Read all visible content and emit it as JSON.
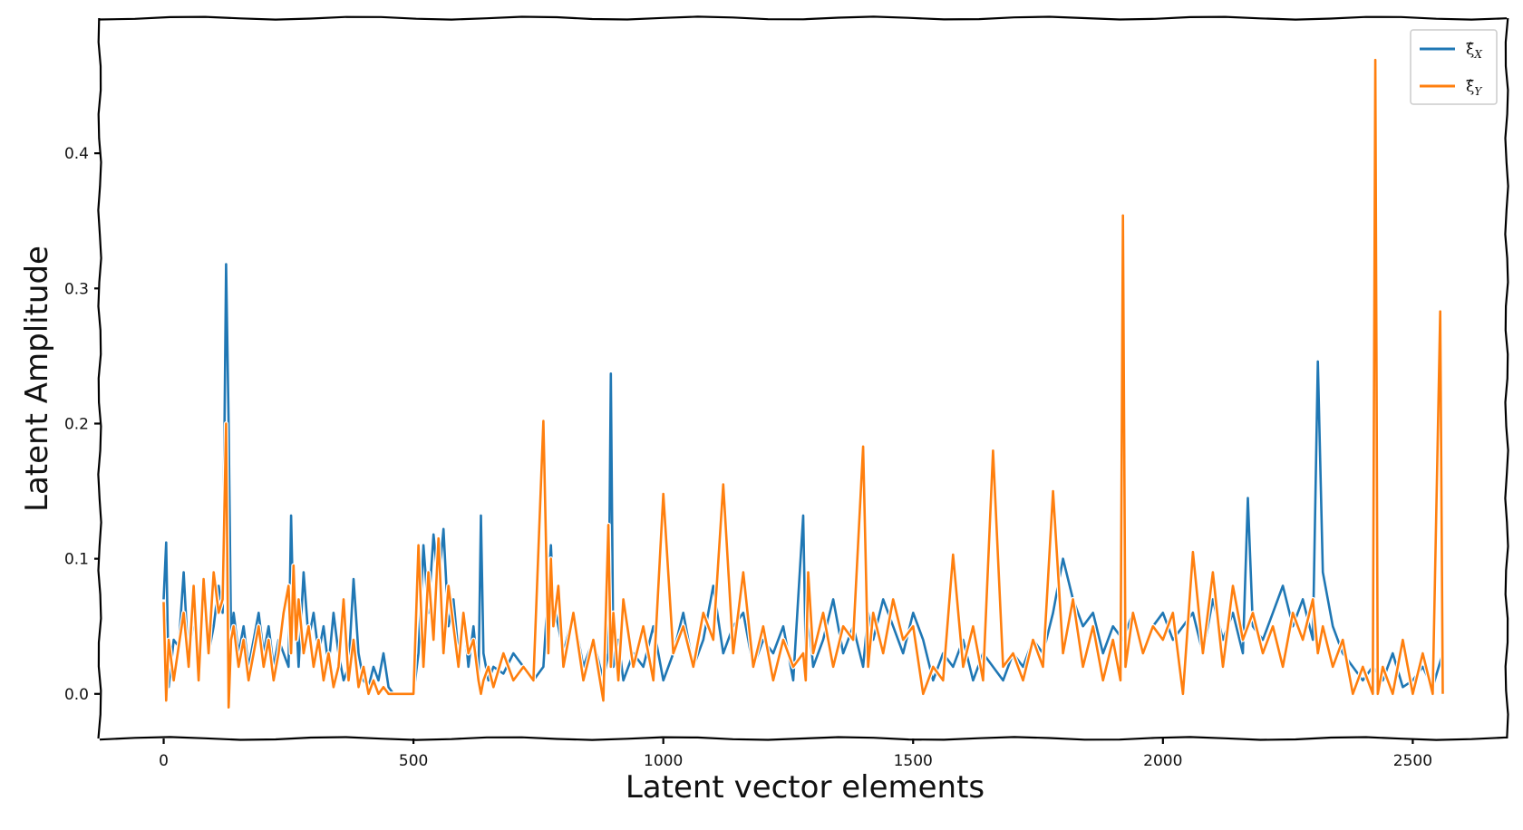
{
  "chart_data": {
    "type": "line",
    "title": "",
    "xlabel": "Latent vector elements",
    "ylabel": "Latent Amplitude",
    "xlim": [
      -128,
      2688
    ],
    "ylim": [
      -0.033,
      0.5
    ],
    "xticks": [
      0,
      500,
      1000,
      1500,
      2000,
      2500
    ],
    "xtick_labels": [
      "0",
      "500",
      "1000",
      "1500",
      "2000",
      "2500"
    ],
    "yticks": [
      0.0,
      0.1,
      0.2,
      0.3,
      0.4
    ],
    "ytick_labels": [
      "0.0",
      "0.1",
      "0.2",
      "0.3",
      "0.4"
    ],
    "grid": false,
    "legend_position": "top-right",
    "style": "xkcd hand-drawn",
    "colors": {
      "series_x": "#1f77b4",
      "series_y": "#ff7f0e"
    },
    "series": [
      {
        "name": "ξ̂X",
        "name_main": "ξ̂",
        "name_sub": "X",
        "color": "#1f77b4",
        "x": [
          0,
          5,
          10,
          20,
          30,
          40,
          50,
          60,
          70,
          80,
          90,
          100,
          110,
          118,
          125,
          130,
          135,
          140,
          150,
          160,
          170,
          180,
          190,
          200,
          210,
          220,
          230,
          240,
          250,
          255,
          260,
          265,
          270,
          280,
          290,
          300,
          310,
          320,
          330,
          340,
          350,
          360,
          370,
          380,
          390,
          400,
          410,
          420,
          430,
          440,
          450,
          460,
          470,
          480,
          490,
          500,
          510,
          520,
          530,
          540,
          550,
          560,
          570,
          580,
          590,
          600,
          610,
          620,
          630,
          635,
          640,
          650,
          660,
          680,
          700,
          720,
          740,
          760,
          770,
          775,
          780,
          790,
          800,
          820,
          840,
          860,
          880,
          890,
          895,
          900,
          910,
          920,
          940,
          960,
          980,
          1000,
          1020,
          1040,
          1060,
          1080,
          1100,
          1120,
          1140,
          1160,
          1180,
          1200,
          1220,
          1240,
          1260,
          1280,
          1285,
          1290,
          1300,
          1320,
          1340,
          1360,
          1380,
          1400,
          1410,
          1420,
          1440,
          1460,
          1480,
          1500,
          1520,
          1540,
          1560,
          1580,
          1600,
          1620,
          1640,
          1660,
          1680,
          1700,
          1720,
          1740,
          1760,
          1780,
          1800,
          1820,
          1840,
          1860,
          1880,
          1900,
          1920,
          1940,
          1960,
          1980,
          2000,
          2020,
          2040,
          2060,
          2080,
          2100,
          2120,
          2140,
          2160,
          2170,
          2180,
          2200,
          2220,
          2240,
          2260,
          2280,
          2300,
          2310,
          2320,
          2340,
          2360,
          2380,
          2400,
          2420,
          2440,
          2460,
          2480,
          2500,
          2520,
          2540,
          2560
        ],
        "y": [
          0.07,
          0.112,
          0.005,
          0.04,
          0.035,
          0.09,
          0.02,
          0.06,
          0.01,
          0.07,
          0.03,
          0.05,
          0.08,
          0.06,
          0.318,
          0.2,
          0.04,
          0.06,
          0.03,
          0.05,
          0.02,
          0.04,
          0.06,
          0.03,
          0.05,
          0.02,
          0.04,
          0.03,
          0.02,
          0.132,
          0.05,
          0.06,
          0.02,
          0.09,
          0.04,
          0.06,
          0.03,
          0.05,
          0.02,
          0.06,
          0.03,
          0.01,
          0.02,
          0.085,
          0.03,
          0.01,
          0.005,
          0.02,
          0.01,
          0.03,
          0.005,
          0.0,
          0.0,
          0.0,
          0.0,
          0.0,
          0.03,
          0.11,
          0.06,
          0.118,
          0.08,
          0.122,
          0.05,
          0.07,
          0.03,
          0.06,
          0.02,
          0.05,
          0.01,
          0.132,
          0.03,
          0.01,
          0.02,
          0.015,
          0.03,
          0.02,
          0.01,
          0.02,
          0.08,
          0.11,
          0.07,
          0.05,
          0.03,
          0.06,
          0.02,
          0.04,
          0.01,
          0.03,
          0.237,
          0.02,
          0.04,
          0.01,
          0.03,
          0.02,
          0.05,
          0.01,
          0.03,
          0.06,
          0.02,
          0.04,
          0.08,
          0.03,
          0.05,
          0.06,
          0.02,
          0.04,
          0.03,
          0.05,
          0.01,
          0.132,
          0.03,
          0.06,
          0.02,
          0.04,
          0.07,
          0.03,
          0.05,
          0.02,
          0.06,
          0.04,
          0.07,
          0.05,
          0.03,
          0.06,
          0.04,
          0.01,
          0.03,
          0.02,
          0.04,
          0.01,
          0.03,
          0.02,
          0.01,
          0.03,
          0.02,
          0.04,
          0.03,
          0.06,
          0.1,
          0.07,
          0.05,
          0.06,
          0.03,
          0.05,
          0.04,
          0.06,
          0.03,
          0.05,
          0.06,
          0.04,
          0.05,
          0.06,
          0.03,
          0.07,
          0.04,
          0.06,
          0.03,
          0.145,
          0.05,
          0.04,
          0.06,
          0.08,
          0.05,
          0.07,
          0.04,
          0.246,
          0.09,
          0.05,
          0.03,
          0.02,
          0.01,
          0.02,
          0.01,
          0.03,
          0.005,
          0.01,
          0.02,
          0.005,
          0.03
        ],
        "note_peak_max": 0.318
      },
      {
        "name": "ξ̂Y",
        "name_main": "ξ̂",
        "name_sub": "Y",
        "color": "#ff7f0e",
        "x": [
          0,
          5,
          10,
          20,
          30,
          40,
          50,
          60,
          70,
          80,
          90,
          100,
          110,
          118,
          125,
          130,
          135,
          140,
          150,
          160,
          170,
          180,
          190,
          200,
          210,
          220,
          230,
          240,
          250,
          255,
          260,
          265,
          270,
          280,
          290,
          300,
          310,
          320,
          330,
          340,
          350,
          360,
          370,
          380,
          390,
          400,
          410,
          420,
          430,
          440,
          450,
          460,
          470,
          480,
          490,
          500,
          510,
          520,
          530,
          540,
          550,
          560,
          570,
          580,
          590,
          600,
          610,
          620,
          630,
          635,
          640,
          650,
          660,
          680,
          700,
          720,
          740,
          760,
          770,
          775,
          780,
          790,
          800,
          820,
          840,
          860,
          880,
          890,
          895,
          900,
          910,
          920,
          940,
          960,
          980,
          1000,
          1020,
          1040,
          1060,
          1080,
          1100,
          1120,
          1140,
          1160,
          1180,
          1200,
          1220,
          1240,
          1260,
          1280,
          1285,
          1290,
          1300,
          1320,
          1340,
          1360,
          1380,
          1400,
          1410,
          1420,
          1440,
          1460,
          1480,
          1500,
          1520,
          1540,
          1560,
          1580,
          1600,
          1620,
          1640,
          1660,
          1680,
          1700,
          1720,
          1740,
          1760,
          1780,
          1800,
          1820,
          1840,
          1860,
          1880,
          1900,
          1915,
          1920,
          1925,
          1940,
          1960,
          1980,
          2000,
          2020,
          2040,
          2060,
          2080,
          2100,
          2120,
          2140,
          2160,
          2180,
          2200,
          2220,
          2240,
          2260,
          2280,
          2300,
          2310,
          2320,
          2340,
          2360,
          2380,
          2400,
          2420,
          2425,
          2430,
          2440,
          2460,
          2480,
          2500,
          2520,
          2540,
          2555,
          2560
        ],
        "y": [
          0.068,
          -0.005,
          0.04,
          0.01,
          0.035,
          0.06,
          0.02,
          0.08,
          0.01,
          0.085,
          0.03,
          0.09,
          0.06,
          0.07,
          0.2,
          -0.01,
          0.04,
          0.05,
          0.02,
          0.04,
          0.01,
          0.03,
          0.05,
          0.02,
          0.04,
          0.01,
          0.03,
          0.06,
          0.08,
          0.03,
          0.095,
          0.04,
          0.07,
          0.03,
          0.05,
          0.02,
          0.04,
          0.01,
          0.03,
          0.005,
          0.02,
          0.07,
          0.01,
          0.04,
          0.005,
          0.02,
          0.0,
          0.01,
          0.0,
          0.005,
          0.0,
          0.0,
          0.0,
          0.0,
          0.0,
          0.0,
          0.11,
          0.02,
          0.09,
          0.04,
          0.115,
          0.03,
          0.08,
          0.05,
          0.02,
          0.06,
          0.03,
          0.04,
          0.01,
          0.0,
          0.01,
          0.02,
          0.005,
          0.03,
          0.01,
          0.02,
          0.01,
          0.202,
          0.03,
          0.1,
          0.05,
          0.08,
          0.02,
          0.06,
          0.01,
          0.04,
          -0.005,
          0.125,
          0.02,
          0.06,
          0.01,
          0.07,
          0.02,
          0.05,
          0.01,
          0.148,
          0.03,
          0.05,
          0.02,
          0.06,
          0.04,
          0.155,
          0.03,
          0.09,
          0.02,
          0.05,
          0.01,
          0.04,
          0.02,
          0.03,
          0.01,
          0.09,
          0.03,
          0.06,
          0.02,
          0.05,
          0.04,
          0.183,
          0.02,
          0.06,
          0.03,
          0.07,
          0.04,
          0.05,
          0.0,
          0.02,
          0.01,
          0.103,
          0.02,
          0.05,
          0.01,
          0.18,
          0.02,
          0.03,
          0.01,
          0.04,
          0.02,
          0.15,
          0.03,
          0.07,
          0.02,
          0.05,
          0.01,
          0.04,
          0.01,
          0.354,
          0.02,
          0.06,
          0.03,
          0.05,
          0.04,
          0.06,
          0.0,
          0.105,
          0.03,
          0.09,
          0.02,
          0.08,
          0.04,
          0.06,
          0.03,
          0.05,
          0.02,
          0.06,
          0.04,
          0.07,
          0.03,
          0.05,
          0.02,
          0.04,
          0.0,
          0.02,
          0.0,
          0.469,
          0.0,
          0.02,
          0.0,
          0.04,
          0.0,
          0.03,
          0.0,
          0.283,
          0.0
        ],
        "note_peak_max": 0.469
      }
    ]
  }
}
